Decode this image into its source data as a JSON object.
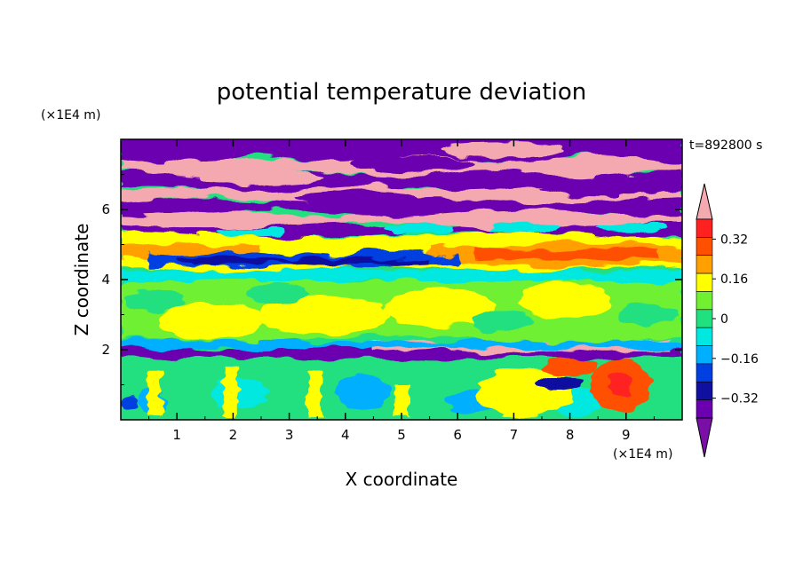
{
  "chart_data": {
    "type": "heatmap",
    "title": "potential temperature deviation",
    "xlabel": "X coordinate",
    "ylabel": "Z coordinate",
    "x_unit": "(×1E4 m)",
    "y_unit": "(×1E4 m)",
    "time_label": "t=892800 s",
    "xlim": [
      0,
      10
    ],
    "ylim": [
      0,
      8
    ],
    "x_ticks": [
      1,
      2,
      3,
      4,
      5,
      6,
      7,
      8,
      9
    ],
    "y_ticks": [
      2,
      4,
      6
    ],
    "colorbar": {
      "levels": [
        -0.48,
        -0.4,
        -0.32,
        -0.24,
        -0.16,
        -0.08,
        0,
        0.08,
        0.16,
        0.24,
        0.32,
        0.4,
        0.48
      ],
      "tick_labels": [
        "0.32",
        "0.16",
        "0",
        "−0.16",
        "−0.32"
      ],
      "tick_values": [
        0.32,
        0.16,
        0,
        -0.16,
        -0.32
      ],
      "colors": [
        "#7a0fa8",
        "#6a00b0",
        "#1010a0",
        "#0040e0",
        "#00b0ff",
        "#00e8e0",
        "#20e080",
        "#70f030",
        "#ffff00",
        "#ffa000",
        "#ff5000",
        "#ff2020",
        "#f4a8b0"
      ],
      "extend": "both"
    },
    "field_bands": [
      {
        "z_range": [
          7.2,
          8.0
        ],
        "approx_value": "alternating ≤−0.48 / ≥0.48"
      },
      {
        "z_range": [
          5.5,
          7.2
        ],
        "approx_value": "alternating ≤−0.48 / ≥0.48"
      },
      {
        "z_range": [
          4.0,
          5.5
        ],
        "approx_value": "0.1 to 0.4 with mixed negative filaments"
      },
      {
        "z_range": [
          2.2,
          4.0
        ],
        "approx_value": "-0.1 to 0.15"
      },
      {
        "z_range": [
          1.7,
          2.2
        ],
        "approx_value": "≤−0.48 layer with ≥0.48 patches"
      },
      {
        "z_range": [
          0.0,
          1.7
        ],
        "approx_value": "-0.2 to 0.4 convective plumes"
      }
    ]
  }
}
